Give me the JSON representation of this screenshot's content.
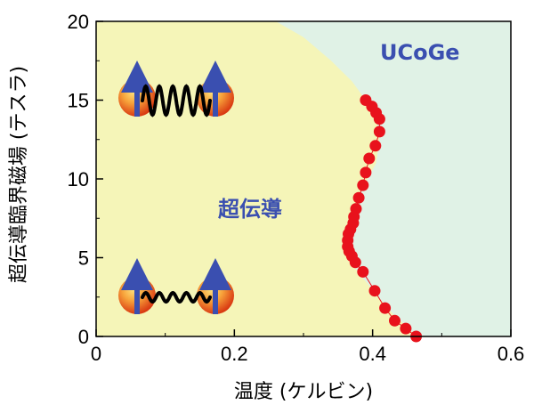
{
  "chart_data": {
    "type": "scatter",
    "title": "",
    "xlabel": "温度 (ケルビン)",
    "ylabel": "超伝導臨界磁場 (テスラ)",
    "xlim": [
      0,
      0.6
    ],
    "ylim": [
      0,
      20
    ],
    "x_ticks": [
      "0",
      "0.2",
      "0.4",
      "0.6"
    ],
    "y_ticks": [
      "0",
      "5",
      "10",
      "15",
      "20"
    ],
    "grid": false,
    "region_labels": {
      "superconducting": "超伝導",
      "material": "UCoGe"
    },
    "colors": {
      "superconducting_region": "#f5f5b8",
      "normal_region": "#e0f2e6",
      "points": "#e8121c",
      "label_blue": "#3a4fb0"
    },
    "series": [
      {
        "name": "",
        "x": [
          0.463,
          0.448,
          0.432,
          0.418,
          0.403,
          0.386,
          0.375,
          0.37,
          0.366,
          0.364,
          0.364,
          0.365,
          0.368,
          0.372,
          0.373,
          0.376,
          0.38,
          0.386,
          0.39,
          0.395,
          0.404,
          0.41,
          0.41,
          0.405,
          0.399,
          0.39
        ],
        "y": [
          0.0,
          0.5,
          1.0,
          1.8,
          2.9,
          4.1,
          4.7,
          5.1,
          5.4,
          5.7,
          6.1,
          6.5,
          6.8,
          7.2,
          7.6,
          8.1,
          8.8,
          9.6,
          10.4,
          11.3,
          12.1,
          13.0,
          13.8,
          14.2,
          14.6,
          15.0
        ]
      }
    ],
    "boundary_curve": {
      "x": [
        0.26,
        0.3,
        0.34,
        0.37,
        0.39,
        0.405,
        0.41,
        0.405,
        0.39,
        0.375,
        0.368,
        0.364,
        0.366,
        0.375,
        0.39,
        0.41,
        0.43,
        0.45,
        0.463
      ],
      "y": [
        20,
        19,
        17.5,
        16.2,
        15.0,
        14.0,
        12.5,
        11.0,
        9.8,
        8.3,
        7.0,
        6.0,
        5.0,
        4.3,
        3.5,
        2.4,
        1.4,
        0.6,
        0.0
      ]
    }
  },
  "icons": {
    "top_pair": "spin-pair-strong-icon",
    "bottom_pair": "spin-pair-weak-icon"
  }
}
